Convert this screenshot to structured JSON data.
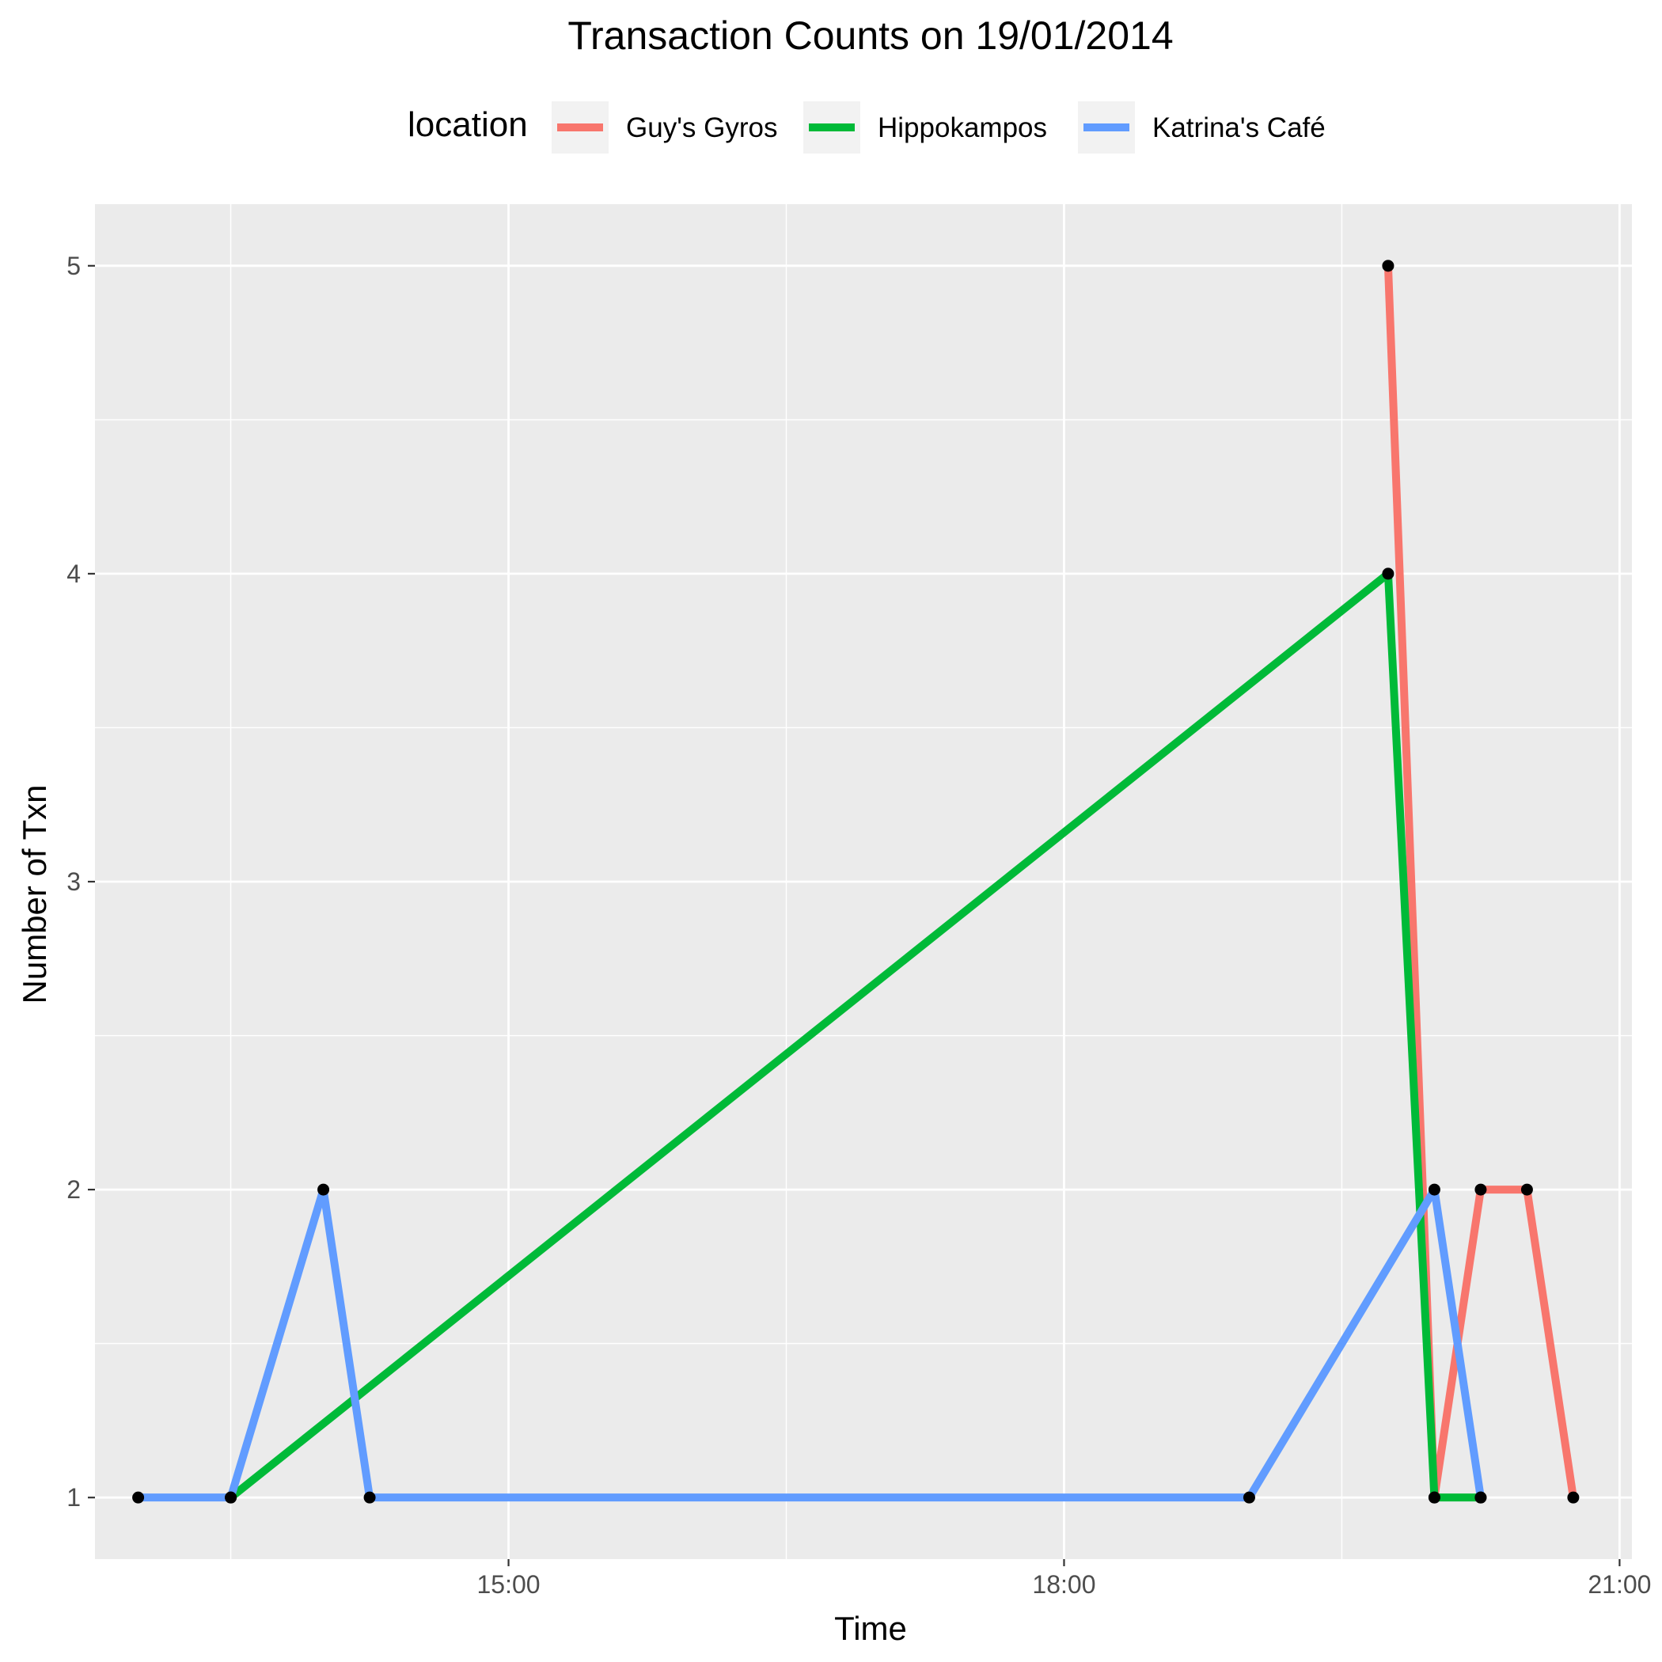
{
  "chart_data": {
    "type": "line",
    "title": "Transaction Counts on 19/01/2014",
    "xlabel": "Time",
    "ylabel": "Number of Txn",
    "legend_title": "location",
    "legend_position": "top",
    "grid": true,
    "xlim": [
      "12:46",
      "21:04"
    ],
    "ylim": [
      0.8,
      5.2
    ],
    "x_ticks": [
      "15:00",
      "18:00",
      "21:00"
    ],
    "y_ticks": [
      1,
      2,
      3,
      4,
      5
    ],
    "series": [
      {
        "name": "Guy's Gyros",
        "color": "#F8766D",
        "x": [
          "19:45",
          "20:00",
          "20:15",
          "20:30",
          "20:45"
        ],
        "y": [
          5,
          1,
          2,
          2,
          1
        ]
      },
      {
        "name": "Hippokampos",
        "color": "#00BA38",
        "x": [
          "13:30",
          "19:45",
          "20:00",
          "20:15"
        ],
        "y": [
          1,
          4,
          1,
          1
        ]
      },
      {
        "name": "Katrina's Café",
        "color": "#619CFF",
        "x": [
          "13:00",
          "13:30",
          "14:00",
          "14:15",
          "19:00",
          "20:00",
          "20:15"
        ],
        "y": [
          1,
          1,
          2,
          1,
          1,
          2,
          1
        ]
      }
    ]
  }
}
